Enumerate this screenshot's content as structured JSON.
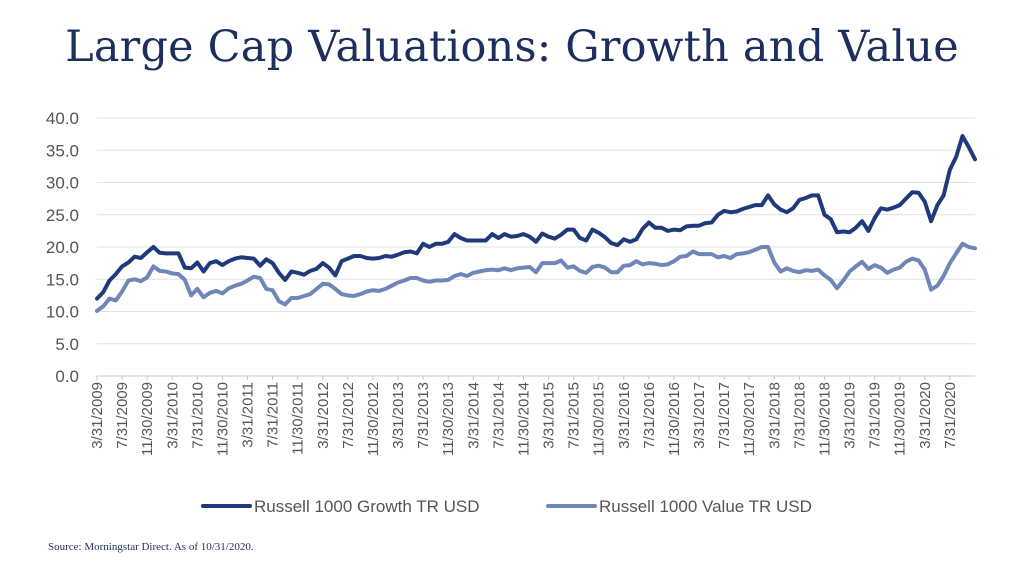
{
  "source_note": "Source: Morningstar Direct. As of 10/31/2020.",
  "chart_data": {
    "type": "line",
    "title": "Large Cap Valuations: Growth and Value",
    "xlabel": "",
    "ylabel": "",
    "ylim": [
      0,
      40
    ],
    "yticks": [
      "0.0",
      "5.0",
      "10.0",
      "15.0",
      "20.0",
      "25.0",
      "30.0",
      "35.0",
      "40.0"
    ],
    "grid": "horizontal",
    "legend_position": "bottom",
    "x_tick_labels": [
      "3/31/2009",
      "7/31/2009",
      "11/30/2009",
      "3/31/2010",
      "7/31/2010",
      "11/30/2010",
      "3/31/2011",
      "7/31/2011",
      "11/30/2011",
      "3/31/2012",
      "7/31/2012",
      "11/30/2012",
      "3/31/2013",
      "7/31/2013",
      "11/30/2013",
      "3/31/2014",
      "7/31/2014",
      "11/30/2014",
      "3/31/2015",
      "7/31/2015",
      "11/30/2015",
      "3/31/2016",
      "7/31/2016",
      "11/30/2016",
      "3/31/2017",
      "7/31/2017",
      "11/30/2017",
      "3/31/2018",
      "7/31/2018",
      "11/30/2018",
      "3/31/2019",
      "7/31/2019",
      "11/30/2019",
      "3/31/2020",
      "7/31/2020"
    ],
    "x_start": "3/31/2009",
    "x_end": "10/31/2020",
    "series": [
      {
        "name": "Russell 1000 Growth TR USD",
        "color": "#1f3a7a",
        "values": [
          12.0,
          13.0,
          14.8,
          15.8,
          17.0,
          17.6,
          18.5,
          18.3,
          19.2,
          20.0,
          19.1,
          19.0,
          19.0,
          19.0,
          16.8,
          16.7,
          17.6,
          16.2,
          17.5,
          17.8,
          17.2,
          17.8,
          18.2,
          18.4,
          18.3,
          18.2,
          17.1,
          18.1,
          17.5,
          16.0,
          14.9,
          16.2,
          16.0,
          15.7,
          16.3,
          16.6,
          17.5,
          16.8,
          15.6,
          17.8,
          18.2,
          18.6,
          18.6,
          18.3,
          18.2,
          18.3,
          18.6,
          18.5,
          18.8,
          19.2,
          19.3,
          19.0,
          20.5,
          20.0,
          20.5,
          20.5,
          20.8,
          22.0,
          21.4,
          21.0,
          21.0,
          21.0,
          21.0,
          22.0,
          21.4,
          22.0,
          21.6,
          21.7,
          22.0,
          21.6,
          20.8,
          22.1,
          21.6,
          21.3,
          21.9,
          22.7,
          22.7,
          21.4,
          21.0,
          22.7,
          22.2,
          21.5,
          20.6,
          20.3,
          21.2,
          20.8,
          21.2,
          22.8,
          23.8,
          23.0,
          23.0,
          22.5,
          22.7,
          22.6,
          23.2,
          23.3,
          23.3,
          23.7,
          23.8,
          25.0,
          25.6,
          25.4,
          25.5,
          25.9,
          26.2,
          26.5,
          26.5,
          28.0,
          26.6,
          25.8,
          25.4,
          26.0,
          27.3,
          27.6,
          28.0,
          28.0,
          25.0,
          24.3,
          22.3,
          22.4,
          22.3,
          23.0,
          24.0,
          22.5,
          24.5,
          26.0,
          25.8,
          26.1,
          26.5,
          27.5,
          28.5,
          28.4,
          27.0,
          24.0,
          26.5,
          28.0,
          32.0,
          34.0,
          37.2,
          35.5,
          33.6
        ]
      },
      {
        "name": "Russell 1000 Value TR USD",
        "color": "#6f86b8",
        "values": [
          10.1,
          10.8,
          12.0,
          11.7,
          13.1,
          14.8,
          15.0,
          14.7,
          15.3,
          17.0,
          16.3,
          16.2,
          15.9,
          15.8,
          14.9,
          12.5,
          13.5,
          12.2,
          12.9,
          13.2,
          12.8,
          13.6,
          14.0,
          14.3,
          14.8,
          15.4,
          15.2,
          13.5,
          13.3,
          11.6,
          11.1,
          12.1,
          12.1,
          12.4,
          12.7,
          13.5,
          14.3,
          14.2,
          13.5,
          12.7,
          12.5,
          12.4,
          12.7,
          13.1,
          13.3,
          13.2,
          13.5,
          14.0,
          14.5,
          14.8,
          15.2,
          15.2,
          14.8,
          14.6,
          14.8,
          14.8,
          14.9,
          15.5,
          15.8,
          15.5,
          16.0,
          16.2,
          16.4,
          16.5,
          16.4,
          16.7,
          16.4,
          16.7,
          16.8,
          16.9,
          16.1,
          17.5,
          17.5,
          17.5,
          17.9,
          16.8,
          17.0,
          16.3,
          16.0,
          16.9,
          17.1,
          16.8,
          16.1,
          16.1,
          17.1,
          17.2,
          17.8,
          17.3,
          17.5,
          17.4,
          17.2,
          17.3,
          17.8,
          18.5,
          18.6,
          19.3,
          18.9,
          18.9,
          18.9,
          18.4,
          18.6,
          18.3,
          18.9,
          19.0,
          19.2,
          19.6,
          20.0,
          20.0,
          17.6,
          16.2,
          16.7,
          16.3,
          16.1,
          16.4,
          16.3,
          16.5,
          15.6,
          14.9,
          13.6,
          14.8,
          16.2,
          17.0,
          17.7,
          16.6,
          17.2,
          16.8,
          16.0,
          16.5,
          16.8,
          17.7,
          18.2,
          17.9,
          16.5,
          13.4,
          14.0,
          15.5,
          17.5,
          19.0,
          20.5,
          20.0,
          19.8
        ]
      }
    ]
  }
}
